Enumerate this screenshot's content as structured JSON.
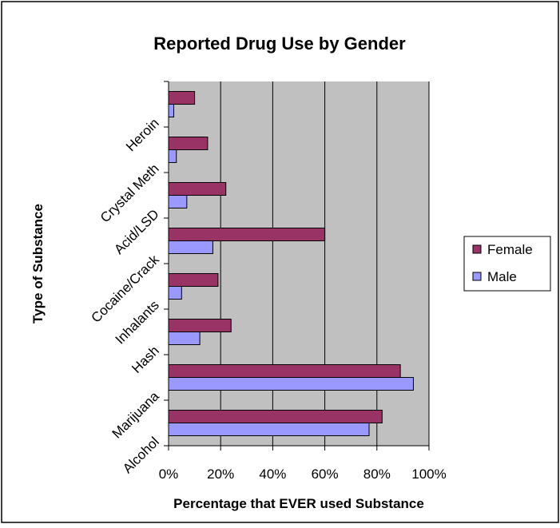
{
  "chart_data": {
    "type": "bar",
    "orientation": "horizontal",
    "title": "Reported Drug Use by Gender",
    "xlabel": "Percentage that EVER used Substance",
    "ylabel": "Type of Substance",
    "xlim": [
      0,
      100
    ],
    "x_ticks": [
      "0%",
      "20%",
      "40%",
      "60%",
      "80%",
      "100%"
    ],
    "x_tick_values": [
      0,
      20,
      40,
      60,
      80,
      100
    ],
    "grid": "vertical",
    "legend_position": "right",
    "categories": [
      "Heroin",
      "Crystal Meth",
      "Acid/LSD",
      "Cocaine/Crack",
      "Inhalants",
      "Hash",
      "Marijuana",
      "Alcohol"
    ],
    "series": [
      {
        "name": "Female",
        "color": "#993366",
        "values": [
          10,
          15,
          22,
          60,
          19,
          24,
          89,
          82
        ]
      },
      {
        "name": "Male",
        "color": "#9999FF",
        "values": [
          2,
          3,
          7,
          17,
          5,
          12,
          94,
          77
        ]
      }
    ],
    "plot_background": "#C0C0C0",
    "border_color": "#000000"
  }
}
